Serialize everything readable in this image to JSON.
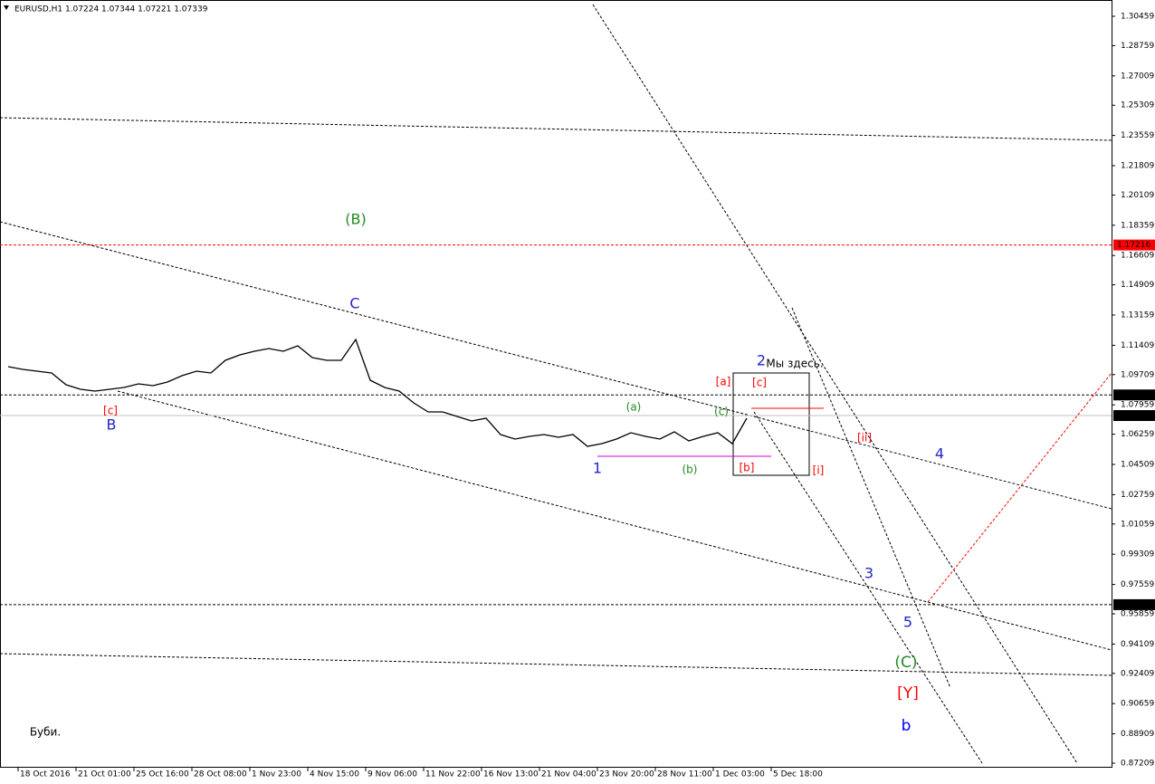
{
  "chart_data": {
    "type": "line",
    "title": "EURUSD,H1  1.07224 1.07344 1.07221 1.07339",
    "categories": [
      null,
      "18 Oct 2016",
      null,
      null,
      null,
      "21 Oct 01:00",
      null,
      null,
      null,
      "25 Oct 16:00",
      null,
      null,
      null,
      "28 Oct 08:00",
      null,
      null,
      null,
      "1 Nov 23:00",
      null,
      null,
      null,
      "4 Nov 15:00",
      null,
      null,
      null,
      "9 Nov 06:00",
      null,
      null,
      null,
      "11 Nov 22:00",
      null,
      null,
      null,
      "16 Nov 13:00",
      null,
      null,
      null,
      "21 Nov 04:00",
      null,
      null,
      null,
      "23 Nov 20:00",
      null,
      null,
      null,
      "28 Nov 11:00",
      null,
      null,
      null,
      "1 Dec 03:00",
      null,
      null,
      null,
      "5 Dec 18:00"
    ],
    "series": [
      {
        "name": "EURUSD",
        "color": "#000000",
        "values": [
          1.10171,
          1.10014,
          1.09909,
          1.09804,
          1.09122,
          1.0886,
          1.08755,
          1.0886,
          1.08965,
          1.09175,
          1.0907,
          1.0928,
          1.09647,
          1.09909,
          1.09804,
          1.10538,
          1.10852,
          1.11062,
          1.11219,
          1.11062,
          1.11377,
          1.10695,
          1.10538,
          1.10538,
          1.11744,
          1.09384,
          1.08965,
          1.08755,
          1.08074,
          1.0755,
          1.0755,
          1.07287,
          1.07025,
          1.07183,
          1.06239,
          1.05977,
          1.06134,
          1.06239,
          1.06082,
          1.06239,
          1.05557,
          1.05715,
          1.05977,
          1.06344,
          1.06134,
          1.05977,
          1.06396,
          1.05872,
          1.06134,
          1.06344,
          1.05715,
          1.07183,
          null,
          null
        ]
      }
    ],
    "ylim": [
      0.86947,
      1.31403
    ],
    "yticks": [
      1.30459,
      1.28759,
      1.27009,
      1.25309,
      1.23559,
      1.21809,
      1.20109,
      1.18359,
      1.16609,
      1.14909,
      1.13159,
      1.11409,
      1.09709,
      1.07959,
      1.06259,
      1.04509,
      1.02759,
      1.01059,
      0.99309,
      0.97559,
      0.95859,
      0.94109,
      0.92409,
      0.90659,
      0.88909,
      0.87209
    ],
    "levels": [
      {
        "value": 1.17216,
        "color": "#ff0000"
      },
      {
        "value": 1.08533,
        "color": "#000000"
      },
      {
        "value": 1.07339,
        "color": "#c0c0c0"
      },
      {
        "value": 0.96388,
        "color": "#000000"
      }
    ],
    "annotations": [
      {
        "text": "(B)",
        "color": "#228b22"
      },
      {
        "text": "C",
        "color": "#2323c8"
      },
      {
        "text": "[c]",
        "color": "#ff0000"
      },
      {
        "text": "B",
        "color": "#2323c8"
      },
      {
        "text": "1",
        "color": "#2323c8"
      },
      {
        "text": "(a)",
        "color": "#228b22"
      },
      {
        "text": "(b)",
        "color": "#228b22"
      },
      {
        "text": "(c)",
        "color": "#228b22"
      },
      {
        "text": "2",
        "color": "#2323c8"
      },
      {
        "text": "Мы здесь.",
        "color": "#000000"
      },
      {
        "text": "[a]",
        "color": "#ff0000"
      },
      {
        "text": "[c]",
        "color": "#ff0000"
      },
      {
        "text": "[b]",
        "color": "#ff0000"
      },
      {
        "text": "[i]",
        "color": "#ff0000"
      },
      {
        "text": "[ii]",
        "color": "#ff0000"
      },
      {
        "text": "3",
        "color": "#2323c8"
      },
      {
        "text": "4",
        "color": "#2323c8"
      },
      {
        "text": "5",
        "color": "#2323c8"
      },
      {
        "text": "(C)",
        "color": "#228b22"
      },
      {
        "text": "[Y]",
        "color": "#ff0000"
      },
      {
        "text": "b",
        "color": "#0000ff"
      },
      {
        "text": "Буби.",
        "color": "#000000"
      }
    ]
  }
}
